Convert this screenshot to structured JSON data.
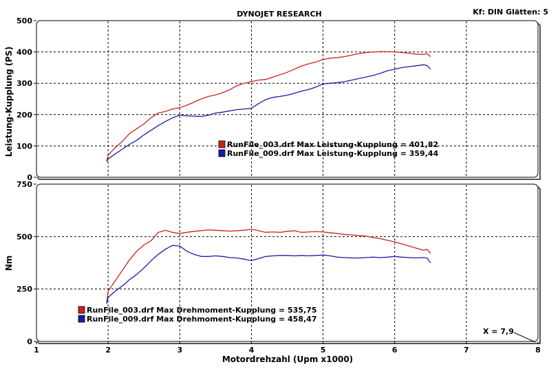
{
  "header": {
    "title": "DYNOJET RESEARCH",
    "info": "Kf: DIN  Glätten: 5"
  },
  "colors": {
    "red": "#cc2020",
    "blue": "#1a1aa8"
  },
  "cursor_readout": "X = 7,9",
  "chart_data": [
    {
      "type": "line",
      "title": "DYNOJET RESEARCH",
      "ylabel": "Leistung-Kupplung (PS)",
      "xlabel": "",
      "xlim": [
        1,
        8
      ],
      "ylim": [
        0,
        500
      ],
      "yticks": [
        0,
        100,
        200,
        300,
        400,
        500
      ],
      "grid": true,
      "legend_position": "center",
      "legend": [
        {
          "color": "red",
          "text": "RunFile_003.drf Max Leistung-Kupplung = 401,82"
        },
        {
          "color": "blue",
          "text": "RunFile_009.drf Max Leistung-Kupplung = 359,44"
        }
      ],
      "series": [
        {
          "name": "RunFile_003.drf",
          "color": "red",
          "x": [
            1.98,
            2.0,
            2.1,
            2.2,
            2.3,
            2.4,
            2.5,
            2.6,
            2.7,
            2.8,
            2.9,
            3.0,
            3.1,
            3.2,
            3.3,
            3.4,
            3.5,
            3.6,
            3.7,
            3.8,
            3.9,
            4.0,
            4.1,
            4.2,
            4.3,
            4.4,
            4.5,
            4.6,
            4.7,
            4.8,
            4.9,
            5.0,
            5.1,
            5.2,
            5.3,
            5.4,
            5.5,
            5.6,
            5.7,
            5.8,
            5.9,
            6.0,
            6.1,
            6.2,
            6.3,
            6.4,
            6.45,
            6.5
          ],
          "y": [
            50,
            70,
            95,
            115,
            140,
            155,
            170,
            190,
            205,
            210,
            218,
            222,
            230,
            240,
            250,
            258,
            263,
            270,
            280,
            292,
            300,
            305,
            310,
            312,
            320,
            327,
            335,
            345,
            355,
            362,
            368,
            376,
            380,
            382,
            385,
            390,
            395,
            398,
            400,
            401,
            401,
            400,
            398,
            396,
            393,
            392,
            395,
            385
          ]
        },
        {
          "name": "RunFile_009.drf",
          "color": "blue",
          "x": [
            1.98,
            2.0,
            2.1,
            2.2,
            2.3,
            2.4,
            2.5,
            2.6,
            2.7,
            2.8,
            2.9,
            3.0,
            3.1,
            3.2,
            3.3,
            3.4,
            3.5,
            3.6,
            3.7,
            3.8,
            3.9,
            4.0,
            4.1,
            4.2,
            4.3,
            4.4,
            4.5,
            4.6,
            4.7,
            4.8,
            4.9,
            5.0,
            5.1,
            5.2,
            5.3,
            5.4,
            5.5,
            5.6,
            5.7,
            5.8,
            5.9,
            6.0,
            6.1,
            6.2,
            6.3,
            6.4,
            6.45,
            6.5
          ],
          "y": [
            50,
            58,
            75,
            90,
            105,
            118,
            135,
            150,
            165,
            178,
            190,
            198,
            196,
            195,
            194,
            198,
            205,
            208,
            212,
            216,
            218,
            220,
            235,
            248,
            255,
            258,
            262,
            268,
            275,
            280,
            288,
            298,
            300,
            302,
            305,
            310,
            315,
            320,
            325,
            332,
            340,
            345,
            350,
            353,
            356,
            359,
            357,
            345
          ]
        }
      ]
    },
    {
      "type": "line",
      "ylabel": "Nm",
      "xlabel": "Motordrehzahl (Upm x1000)",
      "xlim": [
        1,
        8
      ],
      "ylim": [
        0,
        750
      ],
      "xticks": [
        1,
        2,
        3,
        4,
        5,
        6,
        7,
        8
      ],
      "yticks": [
        0,
        250,
        500,
        750
      ],
      "grid": true,
      "legend_position": "bottom-left",
      "legend": [
        {
          "color": "red",
          "text": "RunFile_003.drf Max Drehmoment-Kupplung = 535,75"
        },
        {
          "color": "blue",
          "text": "RunFile_009.drf Max Drehmoment-Kupplung = 458,47"
        }
      ],
      "series": [
        {
          "name": "RunFile_003.drf",
          "color": "red",
          "x": [
            1.98,
            2.0,
            2.1,
            2.2,
            2.3,
            2.4,
            2.5,
            2.6,
            2.7,
            2.8,
            2.9,
            3.0,
            3.1,
            3.2,
            3.3,
            3.4,
            3.5,
            3.6,
            3.7,
            3.8,
            3.9,
            4.0,
            4.1,
            4.2,
            4.3,
            4.4,
            4.5,
            4.6,
            4.7,
            4.8,
            4.9,
            5.0,
            5.1,
            5.2,
            5.3,
            5.4,
            5.5,
            5.6,
            5.7,
            5.8,
            5.9,
            6.0,
            6.1,
            6.2,
            6.3,
            6.4,
            6.45,
            6.5
          ],
          "y": [
            180,
            240,
            290,
            340,
            390,
            430,
            460,
            480,
            520,
            530,
            520,
            515,
            520,
            525,
            528,
            532,
            530,
            528,
            526,
            528,
            530,
            535,
            528,
            520,
            522,
            520,
            525,
            528,
            520,
            522,
            524,
            522,
            518,
            515,
            510,
            508,
            505,
            502,
            495,
            490,
            482,
            475,
            465,
            455,
            445,
            435,
            440,
            420
          ]
        },
        {
          "name": "RunFile_009.drf",
          "color": "blue",
          "x": [
            1.98,
            2.0,
            2.1,
            2.2,
            2.3,
            2.4,
            2.5,
            2.6,
            2.7,
            2.8,
            2.9,
            3.0,
            3.1,
            3.2,
            3.3,
            3.4,
            3.5,
            3.6,
            3.7,
            3.8,
            3.9,
            4.0,
            4.1,
            4.2,
            4.3,
            4.4,
            4.5,
            4.6,
            4.7,
            4.8,
            4.9,
            5.0,
            5.1,
            5.2,
            5.3,
            5.4,
            5.5,
            5.6,
            5.7,
            5.8,
            5.9,
            6.0,
            6.1,
            6.2,
            6.3,
            6.4,
            6.45,
            6.5
          ],
          "y": [
            180,
            210,
            240,
            265,
            295,
            320,
            350,
            385,
            415,
            440,
            458,
            455,
            430,
            415,
            405,
            405,
            408,
            405,
            400,
            398,
            392,
            385,
            395,
            405,
            408,
            410,
            410,
            408,
            410,
            408,
            410,
            412,
            408,
            402,
            400,
            398,
            398,
            400,
            402,
            400,
            402,
            405,
            402,
            400,
            398,
            400,
            398,
            375
          ]
        }
      ]
    }
  ]
}
